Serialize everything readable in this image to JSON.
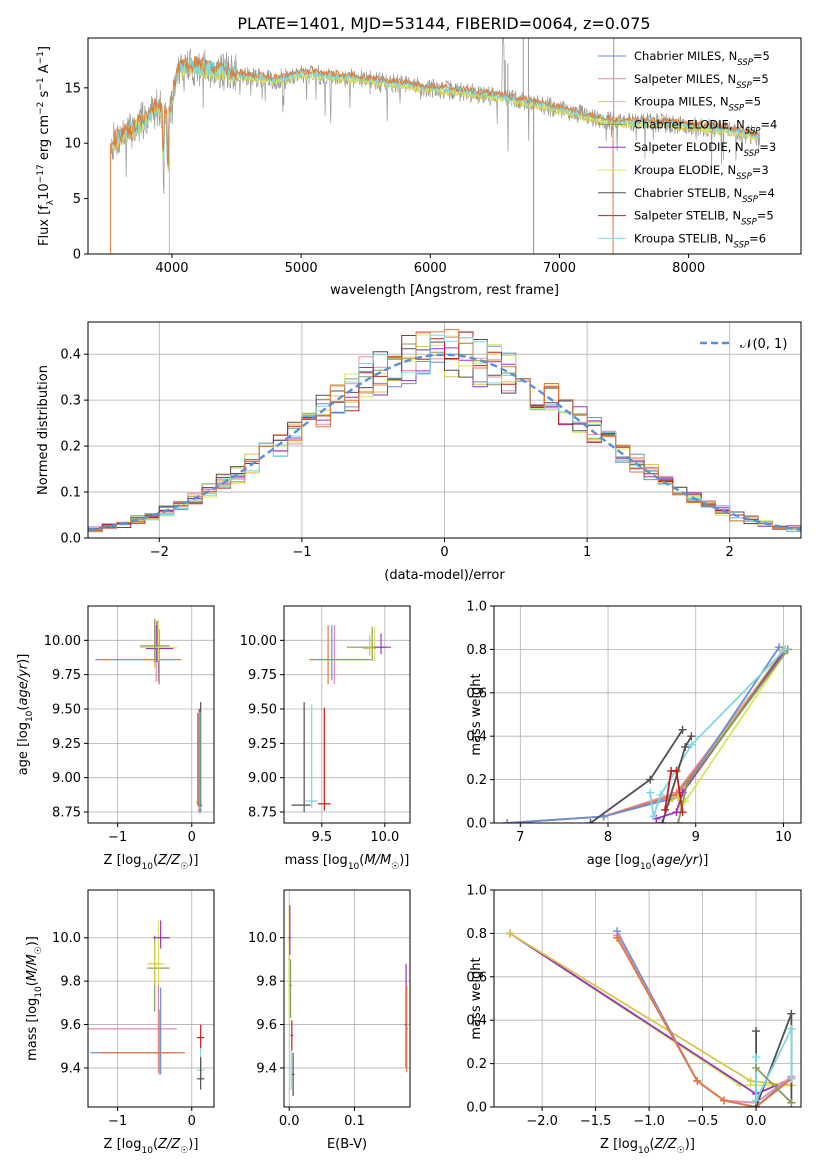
{
  "figure": {
    "title": "PLATE=1401, MJD=53144, FIBERID=0064, z=0.075"
  },
  "colors": {
    "Chabrier MILES": "#6a8fd8",
    "Salpeter MILES": "#e889b8",
    "Kroupa MILES": "#d8c84a",
    "Chabrier ELODIE": "#8a9c5a",
    "Salpeter ELODIE": "#9b30c8",
    "Kroupa ELODIE": "#d4e85a",
    "Chabrier STELIB": "#505050",
    "Salpeter STELIB": "#c0201c",
    "Kroupa STELIB": "#7cd8e0",
    "observed": "#9a9a9a",
    "model": "#e07a3c",
    "normal": "#5b8fd8",
    "grid": "#b0b0b0"
  },
  "chart_data": [
    {
      "id": "spectrum",
      "type": "line",
      "xlabel": "wavelength [Angstrom, rest frame]",
      "xticks": [
        "4000",
        "5000",
        "6000",
        "7000",
        "8000"
      ],
      "xtick_values": [
        4000,
        5000,
        6000,
        7000,
        8000
      ],
      "yticks": [
        "0",
        "5",
        "10",
        "15"
      ],
      "ytick_values": [
        0,
        5,
        10,
        15
      ],
      "xlim": [
        3350,
        8870
      ],
      "ylim": [
        0,
        19.5
      ],
      "ylabel_parts": [
        "Flux [f",
        "λ",
        "10",
        "−17",
        " erg cm",
        "−2",
        " s",
        "−1",
        " A",
        "−1",
        "]"
      ],
      "legend_position": "right",
      "legend": [
        {
          "label": "Chabrier MILES, N",
          "sub": "SSP",
          "tail": "=5",
          "color": "#6a8fd8"
        },
        {
          "label": "Salpeter MILES, N",
          "sub": "SSP",
          "tail": "=5",
          "color": "#e889b8"
        },
        {
          "label": "Kroupa MILES, N",
          "sub": "SSP",
          "tail": "=5",
          "color": "#d8c84a"
        },
        {
          "label": "Chabrier ELODIE, N",
          "sub": "SSP",
          "tail": "=4",
          "color": "#8a9c5a"
        },
        {
          "label": "Salpeter ELODIE, N",
          "sub": "SSP",
          "tail": "=3",
          "color": "#9b30c8"
        },
        {
          "label": "Kroupa ELODIE, N",
          "sub": "SSP",
          "tail": "=3",
          "color": "#d4e85a"
        },
        {
          "label": "Chabrier STELIB, N",
          "sub": "SSP",
          "tail": "=4",
          "color": "#505050"
        },
        {
          "label": "Salpeter STELIB, N",
          "sub": "SSP",
          "tail": "=5",
          "color": "#c0201c"
        },
        {
          "label": "Kroupa STELIB, N",
          "sub": "SSP",
          "tail": "=6",
          "color": "#7cd8e0"
        }
      ],
      "continuum": {
        "x": [
          3530,
          3600,
          3700,
          3800,
          3900,
          3970,
          4050,
          4200,
          4400,
          4600,
          4800,
          5000,
          5300,
          5600,
          5900,
          6200,
          6500,
          6800,
          7000,
          7200,
          7400,
          7600,
          7800,
          8000,
          8300,
          8550
        ],
        "y": [
          10.0,
          10.6,
          11.2,
          12.3,
          13.4,
          12.0,
          16.8,
          16.9,
          16.5,
          16.0,
          15.7,
          16.3,
          16.0,
          15.6,
          15.1,
          14.7,
          14.3,
          13.6,
          13.1,
          12.5,
          12.0,
          11.9,
          11.8,
          11.6,
          11.2,
          10.6
        ]
      }
    },
    {
      "id": "residuals",
      "type": "bar",
      "xlabel": "(data-model)/error",
      "ylabel": "Normed distribution",
      "xticks": [
        "−2",
        "−1",
        "0",
        "1",
        "2"
      ],
      "xtick_values": [
        -2,
        -1,
        0,
        1,
        2
      ],
      "yticks": [
        "0.0",
        "0.1",
        "0.2",
        "0.3",
        "0.4"
      ],
      "ytick_values": [
        0,
        0.1,
        0.2,
        0.3,
        0.4
      ],
      "xlim": [
        -2.5,
        2.5
      ],
      "ylim": [
        0,
        0.47
      ],
      "legend_position": "top-right",
      "legend_label": "𝒩(0, 1)",
      "bin_width": 0.1
    },
    {
      "id": "age-vs-Z",
      "type": "scatter",
      "xlabel": "Z [log10(Z/Z☉)]",
      "ylabel": "age  [log10(age/yr)]",
      "xlim": [
        -1.4,
        0.3
      ],
      "ylim": [
        8.67,
        10.25
      ],
      "xticks": [
        "−1",
        "0"
      ],
      "xtick_values": [
        -1,
        0
      ],
      "yticks": [
        "8.75",
        "9.00",
        "9.25",
        "9.50",
        "9.75",
        "10.00"
      ],
      "ytick_values": [
        8.75,
        9.0,
        9.25,
        9.5,
        9.75,
        10.0
      ]
    },
    {
      "id": "age-vs-mass",
      "type": "scatter",
      "xlabel": "mass [log10(M/M☉)]",
      "xlim": [
        9.2,
        10.2
      ],
      "ylim": [
        8.67,
        10.25
      ],
      "xticks": [
        "9.5",
        "10.0"
      ],
      "xtick_values": [
        9.5,
        10.0
      ],
      "yticks": [
        "8.75",
        "9.00",
        "9.25",
        "9.50",
        "9.75",
        "10.00"
      ],
      "ytick_values": [
        8.75,
        9.0,
        9.25,
        9.5,
        9.75,
        10.0
      ]
    },
    {
      "id": "weight-vs-age",
      "type": "line",
      "xlabel": "age  [log10(age/yr)]",
      "ylabel": "mass weight",
      "xlim": [
        6.7,
        10.2
      ],
      "ylim": [
        0,
        1
      ],
      "xticks": [
        "7",
        "8",
        "9",
        "10"
      ],
      "xtick_values": [
        7,
        8,
        9,
        10
      ],
      "yticks": [
        "0.0",
        "0.2",
        "0.4",
        "0.6",
        "0.8",
        "1.0"
      ],
      "ytick_values": [
        0,
        0.2,
        0.4,
        0.6,
        0.8,
        1.0
      ],
      "series": [
        {
          "color": "#e889b8",
          "x": [
            6.85,
            7.95,
            8.78,
            10.0
          ],
          "y": [
            0.0,
            0.03,
            0.14,
            0.79
          ]
        },
        {
          "color": "#e07a3c",
          "x": [
            6.85,
            7.95,
            8.78,
            10.0
          ],
          "y": [
            0.0,
            0.03,
            0.13,
            0.78
          ]
        },
        {
          "color": "#6a8fd8",
          "x": [
            6.85,
            7.95,
            8.8,
            9.95
          ],
          "y": [
            0.0,
            0.03,
            0.12,
            0.81
          ]
        },
        {
          "color": "#d8c84a",
          "x": [
            8.7,
            8.8,
            10.0
          ],
          "y": [
            0.1,
            0.12,
            0.8
          ]
        },
        {
          "color": "#d4e85a",
          "x": [
            8.82,
            8.88,
            10.05
          ],
          "y": [
            0.08,
            0.1,
            0.8
          ]
        },
        {
          "color": "#9b30c8",
          "x": [
            8.55,
            8.78,
            8.85,
            10.02
          ],
          "y": [
            0.02,
            0.05,
            0.14,
            0.8
          ]
        },
        {
          "color": "#8a9c5a",
          "x": [
            8.8,
            8.9,
            10.05
          ],
          "y": [
            0.0,
            0.18,
            0.8
          ]
        },
        {
          "color": "#7cd8e0",
          "x": [
            8.48,
            8.52,
            8.6,
            8.95,
            10.02
          ],
          "y": [
            0.14,
            0.03,
            0.13,
            0.36,
            0.8
          ]
        },
        {
          "color": "#505050",
          "x": [
            7.8,
            8.48,
            8.85
          ],
          "y": [
            0.0,
            0.2,
            0.43
          ]
        },
        {
          "color": "#505050",
          "x": [
            8.62,
            8.88,
            8.95
          ],
          "y": [
            0.0,
            0.35,
            0.4
          ]
        },
        {
          "color": "#c0201c",
          "x": [
            8.65,
            8.72,
            8.78,
            8.85
          ],
          "y": [
            0.06,
            0.24,
            0.24,
            0.05
          ]
        }
      ]
    },
    {
      "id": "mass-vs-Z",
      "type": "scatter",
      "xlabel": "Z [log10(Z/Z☉)]",
      "ylabel": "mass [log10(M/M☉)]",
      "xlim": [
        -1.4,
        0.3
      ],
      "ylim": [
        9.22,
        10.22
      ],
      "xticks": [
        "−1",
        "0"
      ],
      "xtick_values": [
        -1,
        0
      ],
      "yticks": [
        "9.4",
        "9.6",
        "9.8",
        "10.0"
      ],
      "ytick_values": [
        9.4,
        9.6,
        9.8,
        10.0
      ]
    },
    {
      "id": "mass-vs-EBV",
      "type": "scatter",
      "xlabel": "E(B-V)",
      "xlim": [
        -0.008,
        0.185
      ],
      "ylim": [
        9.22,
        10.22
      ],
      "xticks": [
        "0.0",
        "0.1"
      ],
      "xtick_values": [
        0.0,
        0.1
      ],
      "yticks": [
        "9.4",
        "9.6",
        "9.8",
        "10.0"
      ],
      "ytick_values": [
        9.4,
        9.6,
        9.8,
        10.0
      ]
    },
    {
      "id": "weight-vs-Z",
      "type": "line",
      "xlabel": "Z [log10(Z/Z☉)]",
      "ylabel": "mass weight",
      "xlim": [
        -2.45,
        0.42
      ],
      "ylim": [
        0,
        1
      ],
      "xticks": [
        "−2.0",
        "−1.5",
        "−1.0",
        "−0.5",
        "0.0"
      ],
      "xtick_values": [
        -2.0,
        -1.5,
        -1.0,
        -0.5,
        0.0
      ],
      "yticks": [
        "0.0",
        "0.2",
        "0.4",
        "0.6",
        "0.8",
        "1.0"
      ],
      "ytick_values": [
        0,
        0.2,
        0.4,
        0.6,
        0.8,
        1.0
      ],
      "series": [
        {
          "color": "#d4e85a",
          "x": [
            -2.3,
            -0.15,
            0.33
          ],
          "y": [
            0.8,
            0.1,
            0.1
          ]
        },
        {
          "color": "#9b30c8",
          "x": [
            -2.3,
            0.0,
            0.33
          ],
          "y": [
            0.8,
            0.06,
            0.13
          ]
        },
        {
          "color": "#d8c84a",
          "x": [
            -2.3,
            -0.05,
            0.33
          ],
          "y": [
            0.8,
            0.12,
            0.1
          ]
        },
        {
          "color": "#6a8fd8",
          "x": [
            -1.3,
            -0.55,
            -0.3,
            0.0,
            0.33
          ],
          "y": [
            0.81,
            0.12,
            0.03,
            0.0,
            0.14
          ]
        },
        {
          "color": "#e889b8",
          "x": [
            -1.3,
            -0.55,
            -0.3,
            0.0,
            0.33
          ],
          "y": [
            0.79,
            0.12,
            0.03,
            0.02,
            0.14
          ]
        },
        {
          "color": "#e07a3c",
          "x": [
            -1.3,
            -0.55,
            -0.3,
            0.0,
            0.33
          ],
          "y": [
            0.78,
            0.12,
            0.03,
            0.0,
            0.13
          ]
        },
        {
          "color": "#505050",
          "x": [
            0.0,
            0.0,
            0.33,
            0.33
          ],
          "y": [
            0.35,
            0.0,
            0.43,
            0.02
          ]
        },
        {
          "color": "#7cd8e0",
          "x": [
            0.0,
            0.0,
            0.33,
            0.33
          ],
          "y": [
            0.23,
            0.03,
            0.36,
            0.13
          ]
        },
        {
          "color": "#8a9c5a",
          "x": [
            0.0,
            0.33
          ],
          "y": [
            0.18,
            0.02
          ]
        }
      ]
    }
  ]
}
